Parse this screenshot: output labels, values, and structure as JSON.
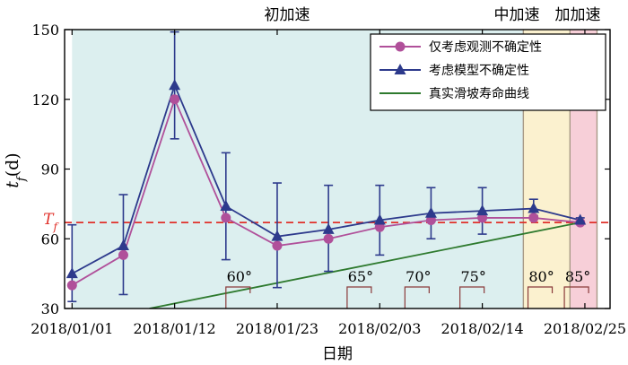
{
  "chart_data": {
    "type": "line",
    "phases": [
      {
        "label": "初加速",
        "x_start": 0,
        "x_end": 48.4,
        "color": "#dcefef"
      },
      {
        "label": "中加速",
        "x_start": 48.4,
        "x_end": 53.4,
        "color": "#fbf1cf"
      },
      {
        "label": "加加速",
        "x_start": 53.4,
        "x_end": 56.3,
        "color": "#f7cfd8"
      }
    ],
    "x_ticks": [
      "2018/01/01",
      "2018/01/12",
      "2018/01/23",
      "2018/02/03",
      "2018/02/14",
      "2018/02/25"
    ],
    "x_tick_values": [
      0,
      11,
      22,
      33,
      44,
      55
    ],
    "xlim": [
      -0.8,
      57.7
    ],
    "ylim": [
      30,
      150
    ],
    "y_ticks": [
      30,
      60,
      90,
      120,
      150
    ],
    "xlabel": "日期",
    "ylabel": "t_f(d)",
    "threshold": {
      "label": "T_f",
      "value": 67
    },
    "series": [
      {
        "name": "仅考虑观测不确定性",
        "color": "#b0509a",
        "marker": "circle",
        "x": [
          0,
          5.5,
          11,
          16.5,
          22,
          27.5,
          33,
          38.5,
          44,
          49.5,
          54.5
        ],
        "y": [
          40,
          53,
          120,
          69,
          57,
          60,
          65,
          68,
          69,
          69,
          67
        ]
      },
      {
        "name": "考虑模型不确定性",
        "color": "#2d3a8c",
        "marker": "triangle",
        "x": [
          0,
          5.5,
          11,
          16.5,
          22,
          27.5,
          33,
          38.5,
          44,
          49.5,
          54.5
        ],
        "y": [
          45,
          57,
          126,
          74,
          61,
          64,
          68,
          71,
          72,
          73,
          68
        ],
        "err_low": [
          12,
          21,
          23,
          23,
          22,
          18,
          15,
          11,
          10,
          3,
          1
        ],
        "err_high": [
          21,
          22,
          23,
          23,
          23,
          19,
          15,
          11,
          10,
          4,
          1
        ]
      },
      {
        "name": "真实滑坡寿命曲线",
        "color": "#2e7a2e",
        "marker": "none",
        "x": [
          8.3,
          54.5
        ],
        "y": [
          30,
          67
        ]
      }
    ],
    "angle_marks": [
      {
        "label": "60°",
        "x": 16.5
      },
      {
        "label": "65°",
        "x": 29.5
      },
      {
        "label": "70°",
        "x": 35.7
      },
      {
        "label": "75°",
        "x": 41.6
      },
      {
        "label": "80°",
        "x": 48.9
      },
      {
        "label": "85°",
        "x": 52.8
      }
    ]
  }
}
